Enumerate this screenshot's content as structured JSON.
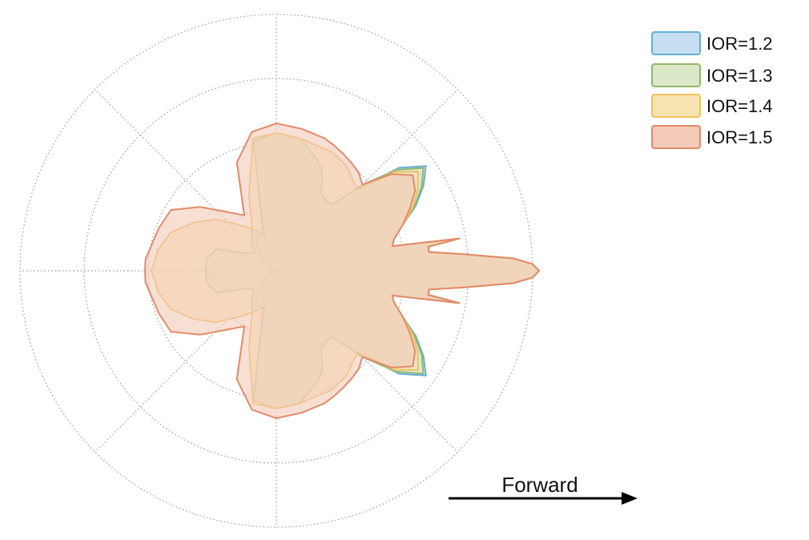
{
  "chart_data": {
    "type": "polar-area",
    "title": "",
    "annotation": "Forward",
    "radial_rings": [
      1,
      2,
      3,
      4
    ],
    "radial_max": 4,
    "angle_spokes_deg": [
      0,
      45,
      90,
      135,
      180,
      225,
      270,
      315
    ],
    "grid": true,
    "legend_position": "top-right",
    "symmetric_about_forward_axis": true,
    "angle_deg": [
      0,
      1.5,
      3,
      5,
      7,
      9,
      10,
      12,
      15,
      20,
      25,
      30,
      35,
      40,
      45,
      50,
      55,
      60,
      65,
      70,
      80,
      90,
      100,
      110,
      120,
      130,
      140,
      150,
      160,
      170,
      175,
      180
    ],
    "series": [
      {
        "name": "IOR=1.2",
        "color": "#6aaed6",
        "fill": "#c6dff0",
        "radius": [
          4.1,
          4.0,
          3.7,
          2.95,
          2.4,
          2.4,
          2.9,
          1.85,
          1.9,
          2.1,
          2.4,
          2.65,
          2.85,
          2.5,
          1.8,
          1.35,
          1.35,
          1.4,
          1.7,
          1.85,
          2.1,
          2.15,
          2.05,
          0.5,
          0.65,
          0.45,
          0.3,
          0.1,
          0.08,
          0.06,
          0.04,
          0.03
        ]
      },
      {
        "name": "IOR=1.3",
        "color": "#8fb86b",
        "fill": "#dbe8c8",
        "radius": [
          4.1,
          4.0,
          3.7,
          2.95,
          2.4,
          2.4,
          2.9,
          1.85,
          1.9,
          2.1,
          2.38,
          2.62,
          2.8,
          2.45,
          1.9,
          1.35,
          1.35,
          1.4,
          1.7,
          1.85,
          2.1,
          2.15,
          2.05,
          0.6,
          0.75,
          0.6,
          0.45,
          0.55,
          1.0,
          1.1,
          1.1,
          1.1
        ]
      },
      {
        "name": "IOR=1.4",
        "color": "#f0c060",
        "fill": "#f7e3b0",
        "radius": [
          4.1,
          4.0,
          3.7,
          2.95,
          2.4,
          2.4,
          2.9,
          1.85,
          1.9,
          2.1,
          2.35,
          2.55,
          2.7,
          2.4,
          1.8,
          1.85,
          1.95,
          2.0,
          2.05,
          2.05,
          2.1,
          2.15,
          2.1,
          1.25,
          0.75,
          0.95,
          1.25,
          1.5,
          1.75,
          1.88,
          1.9,
          1.95
        ]
      },
      {
        "name": "IOR=1.5",
        "color": "#e38b6a",
        "fill": "#f3c9b8",
        "radius": [
          4.1,
          4.0,
          3.7,
          2.95,
          2.4,
          2.4,
          2.9,
          1.85,
          1.9,
          2.1,
          2.3,
          2.5,
          2.6,
          2.35,
          1.9,
          2.0,
          2.05,
          2.1,
          2.15,
          2.2,
          2.25,
          2.3,
          2.2,
          1.8,
          1.0,
          1.2,
          1.55,
          1.9,
          1.95,
          2.0,
          2.05,
          2.05
        ]
      }
    ]
  }
}
